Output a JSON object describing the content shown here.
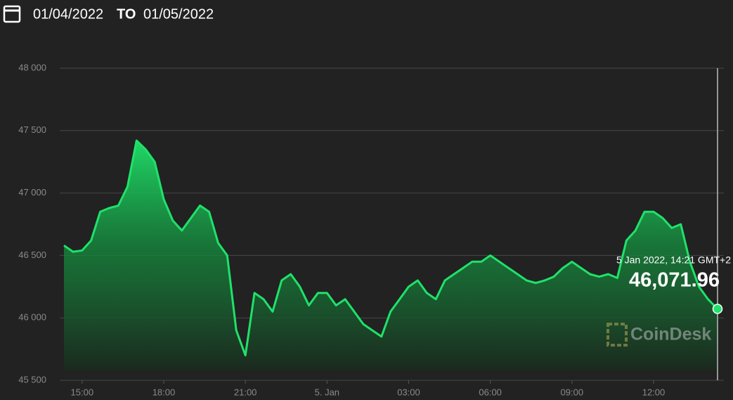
{
  "header": {
    "date_from": "01/04/2022",
    "separator": "TO",
    "date_to": "01/05/2022"
  },
  "watermark": "CoinDesk",
  "chart_data": {
    "type": "area",
    "color": "#1fe26a",
    "x": [
      "2022-01-04T14:20",
      "2022-01-04T14:40",
      "2022-01-04T15:00",
      "2022-01-04T15:20",
      "2022-01-04T15:40",
      "2022-01-04T16:00",
      "2022-01-04T16:20",
      "2022-01-04T16:40",
      "2022-01-04T17:00",
      "2022-01-04T17:20",
      "2022-01-04T17:40",
      "2022-01-04T18:00",
      "2022-01-04T18:20",
      "2022-01-04T18:40",
      "2022-01-04T19:00",
      "2022-01-04T19:20",
      "2022-01-04T19:40",
      "2022-01-04T20:00",
      "2022-01-04T20:20",
      "2022-01-04T20:40",
      "2022-01-04T21:00",
      "2022-01-04T21:20",
      "2022-01-04T21:40",
      "2022-01-04T22:00",
      "2022-01-04T22:20",
      "2022-01-04T22:40",
      "2022-01-04T23:00",
      "2022-01-04T23:20",
      "2022-01-04T23:40",
      "2022-01-05T00:00",
      "2022-01-05T00:20",
      "2022-01-05T00:40",
      "2022-01-05T01:00",
      "2022-01-05T01:20",
      "2022-01-05T01:40",
      "2022-01-05T02:00",
      "2022-01-05T02:20",
      "2022-01-05T02:40",
      "2022-01-05T03:00",
      "2022-01-05T03:20",
      "2022-01-05T03:40",
      "2022-01-05T04:00",
      "2022-01-05T04:20",
      "2022-01-05T04:40",
      "2022-01-05T05:00",
      "2022-01-05T05:20",
      "2022-01-05T05:40",
      "2022-01-05T06:00",
      "2022-01-05T06:20",
      "2022-01-05T06:40",
      "2022-01-05T07:00",
      "2022-01-05T07:20",
      "2022-01-05T07:40",
      "2022-01-05T08:00",
      "2022-01-05T08:20",
      "2022-01-05T08:40",
      "2022-01-05T09:00",
      "2022-01-05T09:20",
      "2022-01-05T09:40",
      "2022-01-05T10:00",
      "2022-01-05T10:20",
      "2022-01-05T10:40",
      "2022-01-05T11:00",
      "2022-01-05T11:20",
      "2022-01-05T11:40",
      "2022-01-05T12:00",
      "2022-01-05T12:20",
      "2022-01-05T12:40",
      "2022-01-05T13:00",
      "2022-01-05T13:20",
      "2022-01-05T13:40",
      "2022-01-05T14:00",
      "2022-01-05T14:21"
    ],
    "values": [
      46580,
      46530,
      46540,
      46620,
      46850,
      46880,
      46900,
      47050,
      47420,
      47350,
      47250,
      46950,
      46780,
      46700,
      46800,
      46900,
      46850,
      46600,
      46500,
      45900,
      45700,
      46200,
      46150,
      46050,
      46300,
      46350,
      46250,
      46100,
      46200,
      46200,
      46100,
      46150,
      46050,
      45950,
      45900,
      45850,
      46050,
      46150,
      46250,
      46300,
      46200,
      46150,
      46300,
      46350,
      46400,
      46450,
      46450,
      46500,
      46450,
      46400,
      46350,
      46300,
      46280,
      46300,
      46330,
      46400,
      46450,
      46400,
      46350,
      46330,
      46350,
      46320,
      46620,
      46700,
      46850,
      46850,
      46800,
      46720,
      46750,
      46450,
      46250,
      46150,
      46071.96
    ],
    "xlim": [
      "2022-01-04T14:20",
      "2022-01-05T14:21"
    ],
    "xticks": [
      {
        "value": "2022-01-04T15:00",
        "label": "15:00"
      },
      {
        "value": "2022-01-04T18:00",
        "label": "18:00"
      },
      {
        "value": "2022-01-04T21:00",
        "label": "21:00"
      },
      {
        "value": "2022-01-05T00:00",
        "label": "5. Jan"
      },
      {
        "value": "2022-01-05T03:00",
        "label": "03:00"
      },
      {
        "value": "2022-01-05T06:00",
        "label": "06:00"
      },
      {
        "value": "2022-01-05T09:00",
        "label": "09:00"
      },
      {
        "value": "2022-01-05T12:00",
        "label": "12:00"
      }
    ],
    "ylim": [
      45500,
      48000
    ],
    "yticks": [
      {
        "value": 45500,
        "label": "45 500"
      },
      {
        "value": 46000,
        "label": "46 000"
      },
      {
        "value": 46500,
        "label": "46 500"
      },
      {
        "value": 47000,
        "label": "47 000"
      },
      {
        "value": 47500,
        "label": "47 500"
      },
      {
        "value": 48000,
        "label": "48 000"
      }
    ],
    "grid": true,
    "tooltip": {
      "label": "5 Jan 2022, 14:21 GMT+2",
      "value_label": "46,071.96"
    }
  }
}
